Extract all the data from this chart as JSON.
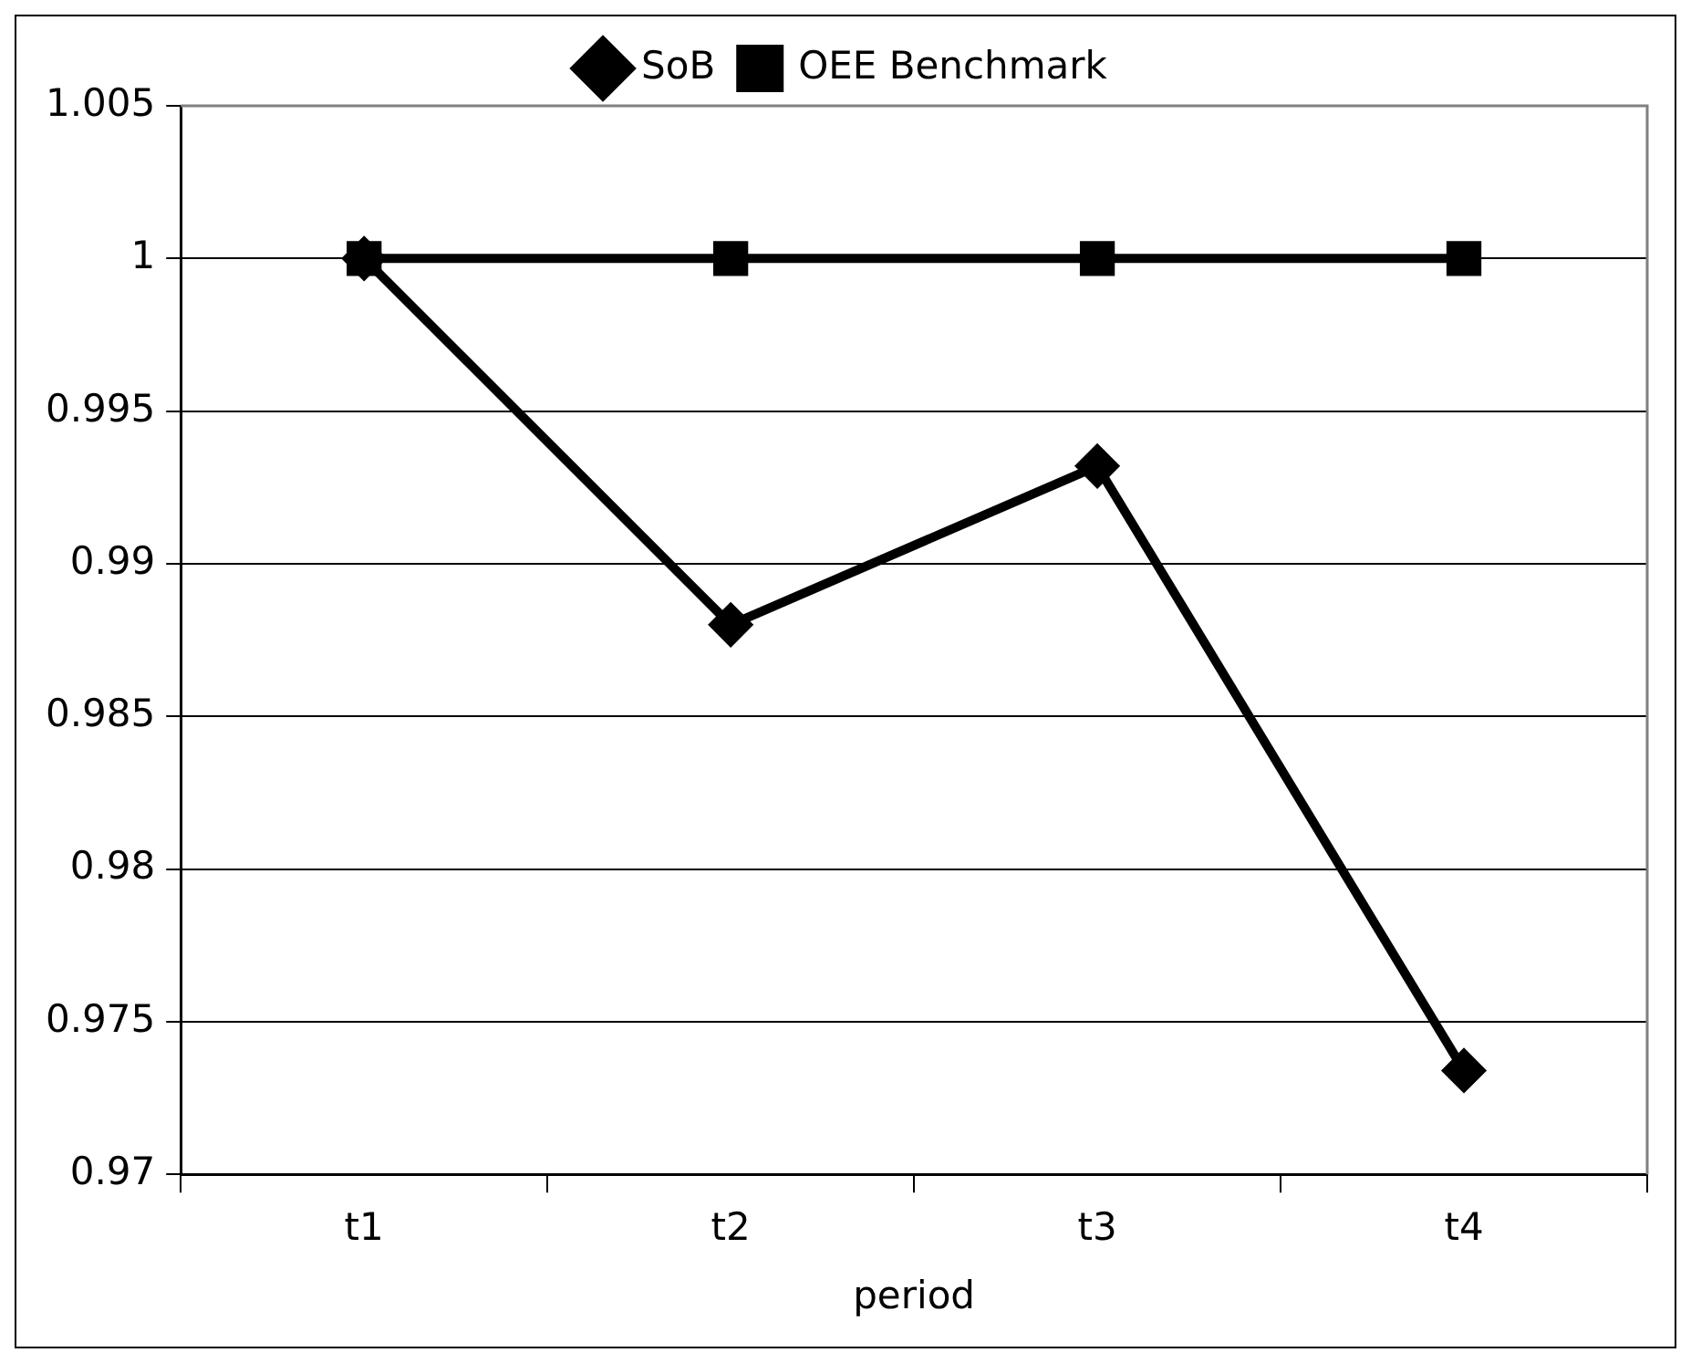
{
  "chart_data": {
    "type": "line",
    "xlabel": "period",
    "categories": [
      "t1",
      "t2",
      "t3",
      "t4"
    ],
    "series": [
      {
        "name": "SoB",
        "color": "#000000",
        "marker": "diamond",
        "values": [
          1,
          0.988,
          0.9932,
          0.9734
        ]
      },
      {
        "name": "OEE Benchmark",
        "color": "#000000",
        "marker": "square",
        "values": [
          1,
          1,
          1,
          1
        ]
      }
    ],
    "ylim": [
      0.97,
      1.005
    ],
    "yticks": [
      0.97,
      0.975,
      0.98,
      0.985,
      0.99,
      0.995,
      1,
      1.005
    ],
    "grid": "y",
    "legend": "top",
    "line_style": "solid"
  }
}
